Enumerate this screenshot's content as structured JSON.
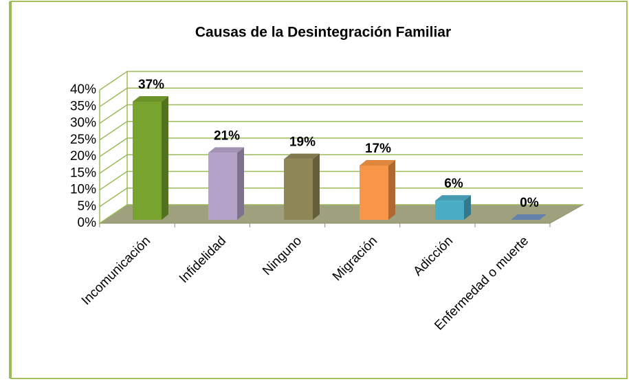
{
  "chart_data": {
    "type": "bar3d",
    "title": "Causas de la Desintegración Familiar",
    "categories": [
      "Incomunicación",
      "Infidelidad",
      "Ninguno",
      "Migración",
      "Adicción",
      "Enfermedad o muerte"
    ],
    "values": [
      37,
      21,
      19,
      17,
      6,
      0
    ],
    "value_labels": [
      "37%",
      "21%",
      "19%",
      "17%",
      "6%",
      "0%"
    ],
    "colors": [
      "#77a32e",
      "#b4a2c8",
      "#8f8656",
      "#f79646",
      "#4bacc6",
      "#6f8fbf"
    ],
    "ylim": [
      0,
      40
    ],
    "yticks": [
      {
        "value": 0,
        "label": "0%"
      },
      {
        "value": 5,
        "label": "5%"
      },
      {
        "value": 10,
        "label": "10%"
      },
      {
        "value": 15,
        "label": "15%"
      },
      {
        "value": 20,
        "label": "20%"
      },
      {
        "value": 25,
        "label": "25%"
      },
      {
        "value": 30,
        "label": "30%"
      },
      {
        "value": 35,
        "label": "35%"
      },
      {
        "value": 40,
        "label": "40%"
      }
    ],
    "grid": true
  }
}
